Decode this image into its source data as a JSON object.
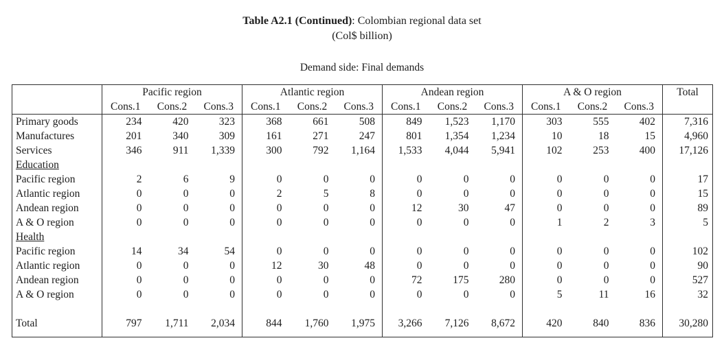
{
  "page": {
    "title_bold": "Table A2.1 (Continued)",
    "title_rest": ": Colombian regional data set",
    "title_line2": "(Col$ billion)",
    "section_heading": "Demand side: Final demands"
  },
  "table": {
    "region_groups": [
      "Pacific region",
      "Atlantic region",
      "Andean region",
      "A & O region"
    ],
    "total_header": "Total",
    "cons_headers": [
      "Cons.1",
      "Cons.2",
      "Cons.3"
    ],
    "rows": [
      {
        "type": "data",
        "underline": false,
        "label": "Primary goods",
        "values": [
          "234",
          "420",
          "323",
          "368",
          "661",
          "508",
          "849",
          "1,523",
          "1,170",
          "303",
          "555",
          "402"
        ],
        "total": "7,316"
      },
      {
        "type": "data",
        "underline": false,
        "label": "Manufactures",
        "values": [
          "201",
          "340",
          "309",
          "161",
          "271",
          "247",
          "801",
          "1,354",
          "1,234",
          "10",
          "18",
          "15"
        ],
        "total": "4,960"
      },
      {
        "type": "data",
        "underline": false,
        "label": "Services",
        "values": [
          "346",
          "911",
          "1,339",
          "300",
          "792",
          "1,164",
          "1,533",
          "4,044",
          "5,941",
          "102",
          "253",
          "400"
        ],
        "total": "17,126"
      },
      {
        "type": "section",
        "underline": true,
        "label": "Education",
        "values": [],
        "total": ""
      },
      {
        "type": "data",
        "underline": false,
        "label": "Pacific region",
        "values": [
          "2",
          "6",
          "9",
          "0",
          "0",
          "0",
          "0",
          "0",
          "0",
          "0",
          "0",
          "0"
        ],
        "total": "17"
      },
      {
        "type": "data",
        "underline": false,
        "label": "Atlantic region",
        "values": [
          "0",
          "0",
          "0",
          "2",
          "5",
          "8",
          "0",
          "0",
          "0",
          "0",
          "0",
          "0"
        ],
        "total": "15"
      },
      {
        "type": "data",
        "underline": false,
        "label": "Andean region",
        "values": [
          "0",
          "0",
          "0",
          "0",
          "0",
          "0",
          "12",
          "30",
          "47",
          "0",
          "0",
          "0"
        ],
        "total": "89"
      },
      {
        "type": "data",
        "underline": false,
        "label": "A & O region",
        "values": [
          "0",
          "0",
          "0",
          "0",
          "0",
          "0",
          "0",
          "0",
          "0",
          "1",
          "2",
          "3"
        ],
        "total": "5"
      },
      {
        "type": "section",
        "underline": true,
        "label": "Health",
        "values": [],
        "total": ""
      },
      {
        "type": "data",
        "underline": false,
        "label": "Pacific region",
        "values": [
          "14",
          "34",
          "54",
          "0",
          "0",
          "0",
          "0",
          "0",
          "0",
          "0",
          "0",
          "0"
        ],
        "total": "102"
      },
      {
        "type": "data",
        "underline": false,
        "label": "Atlantic region",
        "values": [
          "0",
          "0",
          "0",
          "12",
          "30",
          "48",
          "0",
          "0",
          "0",
          "0",
          "0",
          "0"
        ],
        "total": "90"
      },
      {
        "type": "data",
        "underline": false,
        "label": "Andean region",
        "values": [
          "0",
          "0",
          "0",
          "0",
          "0",
          "0",
          "72",
          "175",
          "280",
          "0",
          "0",
          "0"
        ],
        "total": "527"
      },
      {
        "type": "data",
        "underline": false,
        "label": "A & O region",
        "values": [
          "0",
          "0",
          "0",
          "0",
          "0",
          "0",
          "0",
          "0",
          "0",
          "5",
          "11",
          "16"
        ],
        "total": "32"
      },
      {
        "type": "blank",
        "underline": false,
        "label": "",
        "values": [],
        "total": ""
      },
      {
        "type": "total",
        "underline": false,
        "label": "Total",
        "values": [
          "797",
          "1,711",
          "2,034",
          "844",
          "1,760",
          "1,975",
          "3,266",
          "7,126",
          "8,672",
          "420",
          "840",
          "836"
        ],
        "total": "30,280"
      }
    ]
  }
}
